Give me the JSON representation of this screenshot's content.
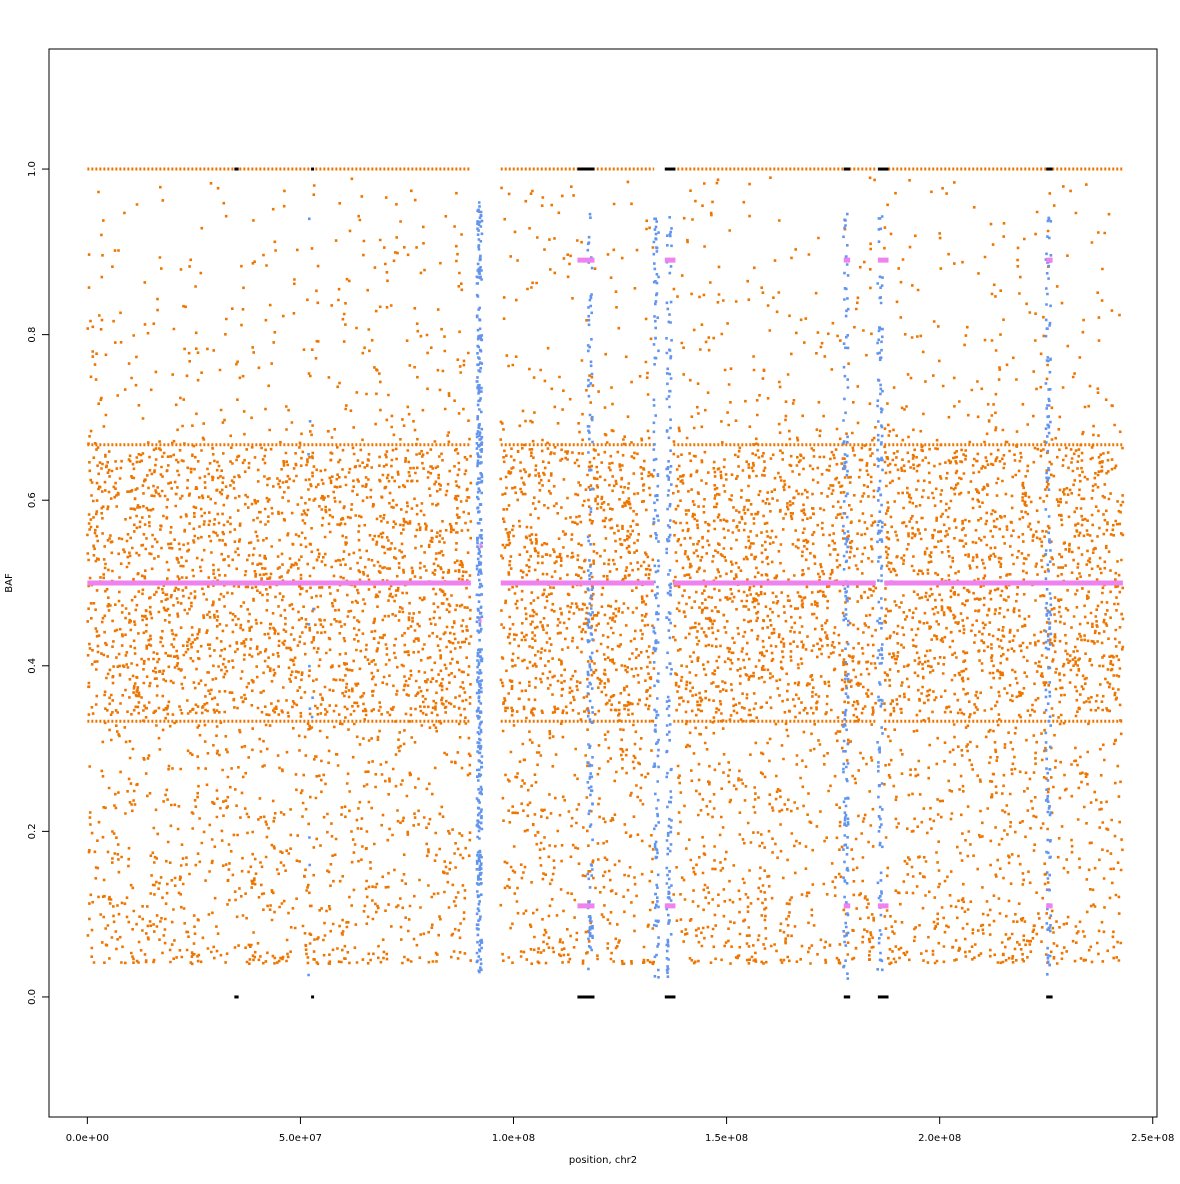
{
  "chart_data": {
    "type": "scatter",
    "title": "",
    "xlabel": "position, chr2",
    "ylabel": "BAF",
    "xlim": [
      -9000000,
      251000000
    ],
    "ylim": [
      -0.145,
      1.145
    ],
    "x_ticks": [
      0,
      50000000,
      100000000,
      150000000,
      200000000,
      250000000
    ],
    "x_tick_labels": [
      "0.0e+00",
      "5.0e+07",
      "1.0e+08",
      "1.5e+08",
      "2.0e+08",
      "2.5e+08"
    ],
    "y_ticks": [
      0.0,
      0.2,
      0.4,
      0.6,
      0.8,
      1.0
    ],
    "y_tick_labels": [
      "0.0",
      "0.2",
      "0.4",
      "0.6",
      "0.8",
      "1.0"
    ],
    "grid": false,
    "legend": "none",
    "colors": {
      "snp_baf": "#EE7600",
      "low_quality": "#6495ED",
      "segment_mean": "#EE82EE",
      "homozygous": "#000000",
      "axis": "#000000"
    },
    "series": [
      {
        "color_key": "snp_baf",
        "description_ranges": [
          {
            "x": [
              0,
              90000000
            ]
          },
          {
            "x": [
              97000000,
              133000000
            ]
          },
          {
            "x": [
              137500000,
              185000000
            ]
          },
          {
            "x": [
              187000000,
              243000000
            ]
          }
        ],
        "bands": [
          {
            "y": [
              0.35,
              0.66
            ],
            "share": 0.55
          },
          {
            "y": [
              0.04,
              0.35
            ],
            "share": 0.3
          },
          {
            "y": [
              0.66,
              1.0
            ],
            "share": 0.1
          }
        ],
        "homozygous_rows": [
          0.0,
          1.0
        ]
      },
      {
        "color_key": "low_quality",
        "columns_x": [
          92000000,
          118000000,
          133500000,
          136500000,
          178000000,
          186000000,
          225500000,
          52500000
        ]
      },
      {
        "color_key": "segment_mean",
        "segments": [
          {
            "x": [
              0,
              90000000
            ],
            "y": 0.5
          },
          {
            "x": [
              97000000,
              133000000
            ],
            "y": 0.5
          },
          {
            "x": [
              137500000,
              185000000
            ],
            "y": 0.5
          },
          {
            "x": [
              187000000,
              243000000
            ],
            "y": 0.5
          },
          {
            "x": [
              115000000,
              119000000
            ],
            "y": 0.89
          },
          {
            "x": [
              115000000,
              119000000
            ],
            "y": 0.11
          },
          {
            "x": [
              135500000,
              138000000
            ],
            "y": 0.89
          },
          {
            "x": [
              135500000,
              138000000
            ],
            "y": 0.11
          },
          {
            "x": [
              177500000,
              179000000
            ],
            "y": 0.89
          },
          {
            "x": [
              177500000,
              179000000
            ],
            "y": 0.11
          },
          {
            "x": [
              185500000,
              188000000
            ],
            "y": 0.89
          },
          {
            "x": [
              185500000,
              188000000
            ],
            "y": 0.11
          },
          {
            "x": [
              225000000,
              226500000
            ],
            "y": 0.89
          },
          {
            "x": [
              225000000,
              226500000
            ],
            "y": 0.11
          },
          {
            "x": [
              92000000,
              92500000
            ],
            "y": 0.545
          },
          {
            "x": [
              92000000,
              92500000
            ],
            "y": 0.455
          }
        ]
      }
    ]
  }
}
